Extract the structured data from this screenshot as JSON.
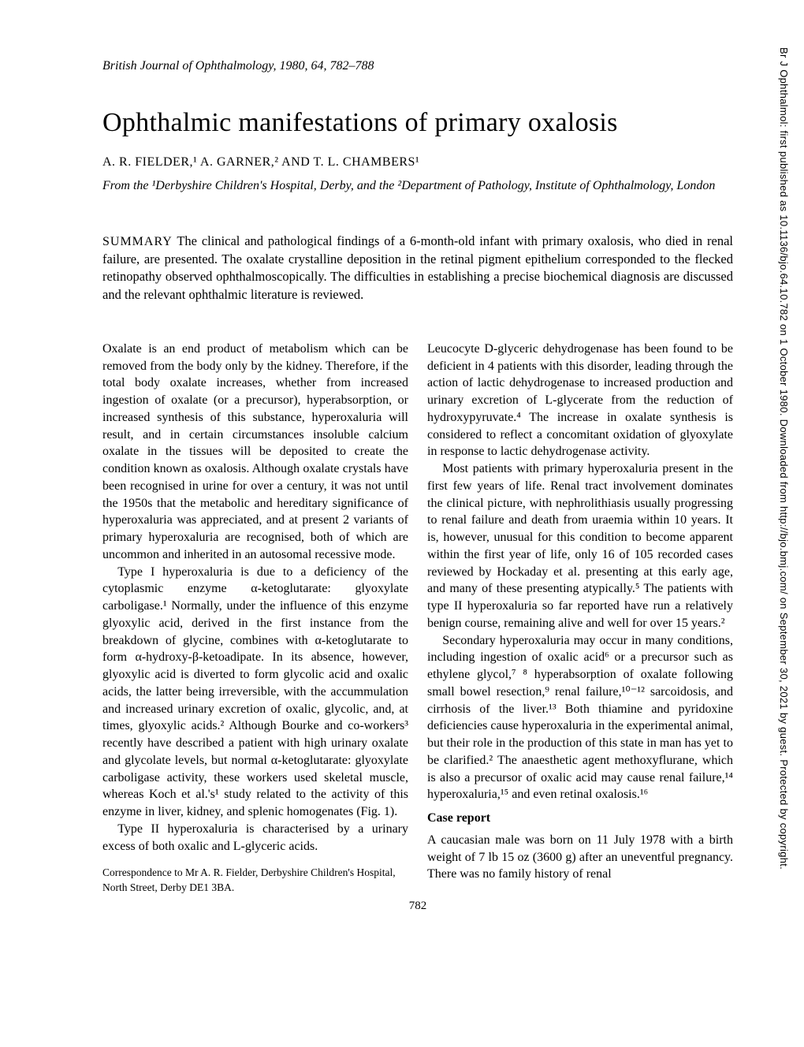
{
  "journal_header": "British Journal of Ophthalmology, 1980, 64, 782–788",
  "title": "Ophthalmic manifestations of primary oxalosis",
  "authors": "A. R. FIELDER,¹ A. GARNER,² AND T. L. CHAMBERS¹",
  "affiliations": "From the ¹Derbyshire Children's Hospital, Derby, and the ²Department of Pathology, Institute of Ophthalmology, London",
  "summary_label": "SUMMARY",
  "summary_body": "  The clinical and pathological findings of a 6-month-old infant with primary oxalosis, who died in renal failure, are presented. The oxalate crystalline deposition in the retinal pigment epithelium corresponded to the flecked retinopathy observed ophthalmoscopically. The difficulties in establishing a precise biochemical diagnosis are discussed and the relevant ophthalmic literature is reviewed.",
  "left_column": {
    "p1": "Oxalate is an end product of metabolism which can be removed from the body only by the kidney. Therefore, if the total body oxalate increases, whether from increased ingestion of oxalate (or a precursor), hyperabsorption, or increased synthesis of this substance, hyperoxaluria will result, and in certain circumstances insoluble calcium oxalate in the tissues will be deposited to create the condition known as oxalosis. Although oxalate crystals have been recognised in urine for over a century, it was not until the 1950s that the metabolic and hereditary significance of hyperoxaluria was appreciated, and at present 2 variants of primary hyperoxaluria are recognised, both of which are uncommon and inherited in an autosomal recessive mode.",
    "p2": "Type I hyperoxaluria is due to a deficiency of the cytoplasmic enzyme α-ketoglutarate: glyoxylate carboligase.¹ Normally, under the influence of this enzyme glyoxylic acid, derived in the first instance from the breakdown of glycine, combines with α-ketoglutarate to form α-hydroxy-β-ketoadipate. In its absence, however, glyoxylic acid is diverted to form glycolic acid and oxalic acids, the latter being irreversible, with the accummulation and increased urinary excretion of oxalic, glycolic, and, at times, glyoxylic acids.² Although Bourke and co-workers³ recently have described a patient with high urinary oxalate and glycolate levels, but normal α-ketoglutarate: glyoxylate carboligase activity, these workers used skeletal muscle, whereas Koch et al.'s¹ study related to the activity of this enzyme in liver, kidney, and splenic homogenates (Fig. 1).",
    "p3": "Type II hyperoxaluria is characterised by a urinary excess of both oxalic and L-glyceric acids.",
    "correspondence": "Correspondence to Mr A. R. Fielder, Derbyshire Children's Hospital, North Street, Derby DE1 3BA."
  },
  "right_column": {
    "p1": "Leucocyte D-glyceric dehydrogenase has been found to be deficient in 4 patients with this disorder, leading through the action of lactic dehydrogenase to increased production and urinary excretion of L-glycerate from the reduction of hydroxypyruvate.⁴ The increase in oxalate synthesis is considered to reflect a concomitant oxidation of glyoxylate in response to lactic dehydrogenase activity.",
    "p2": "Most patients with primary hyperoxaluria present in the first few years of life. Renal tract involvement dominates the clinical picture, with nephrolithiasis usually progressing to renal failure and death from uraemia within 10 years. It is, however, unusual for this condition to become apparent within the first year of life, only 16 of 105 recorded cases reviewed by Hockaday et al. presenting at this early age, and many of these presenting atypically.⁵ The patients with type II hyperoxaluria so far reported have run a relatively benign course, remaining alive and well for over 15 years.²",
    "p3": "Secondary hyperoxaluria may occur in many conditions, including ingestion of oxalic acid⁶ or a precursor such as ethylene glycol,⁷ ⁸ hyperabsorption of oxalate following small bowel resection,⁹ renal failure,¹⁰⁻¹² sarcoidosis, and cirrhosis of the liver.¹³ Both thiamine and pyridoxine deficiencies cause hyperoxaluria in the experimental animal, but their role in the production of this state in man has yet to be clarified.² The anaesthetic agent methoxyflurane, which is also a precursor of oxalic acid may cause renal failure,¹⁴ hyperoxaluria,¹⁵ and even retinal oxalosis.¹⁶",
    "section_heading": "Case report",
    "p4": "A caucasian male was born on 11 July 1978 with a birth weight of 7 lb 15 oz (3600 g) after an uneventful pregnancy. There was no family history of renal"
  },
  "page_number": "782",
  "sidebar": "Br J Ophthalmol: first published as 10.1136/bjo.64.10.782 on 1 October 1980. Downloaded from http://bjo.bmj.com/ on September 30, 2021 by guest. Protected by copyright."
}
